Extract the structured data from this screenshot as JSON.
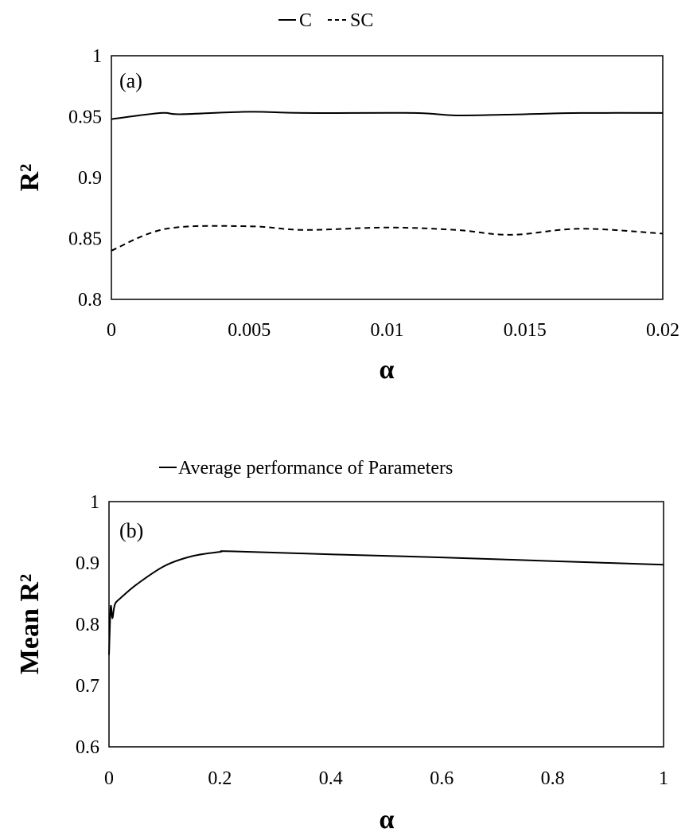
{
  "chart_data": [
    {
      "type": "line",
      "panel_label": "(a)",
      "xlabel": "α",
      "ylabel": "R²",
      "xlim": [
        0,
        0.02
      ],
      "ylim": [
        0.8,
        1
      ],
      "xticks": [
        "0",
        "0.005",
        "0.01",
        "0.015",
        "0.02"
      ],
      "yticks": [
        "0.8",
        "0.85",
        "0.9",
        "0.95",
        "1"
      ],
      "grid": false,
      "legend_position": "top-center",
      "series": [
        {
          "name": "C",
          "style": "solid",
          "color": "#000000",
          "x": [
            0,
            0.0018,
            0.0025,
            0.005,
            0.007,
            0.011,
            0.0125,
            0.015,
            0.017,
            0.02
          ],
          "y": [
            0.948,
            0.953,
            0.952,
            0.954,
            0.953,
            0.953,
            0.951,
            0.952,
            0.953,
            0.953
          ]
        },
        {
          "name": "SC",
          "style": "dashed",
          "color": "#000000",
          "x": [
            0,
            0.002,
            0.005,
            0.007,
            0.01,
            0.0125,
            0.0145,
            0.017,
            0.02
          ],
          "y": [
            0.84,
            0.858,
            0.86,
            0.857,
            0.859,
            0.857,
            0.853,
            0.858,
            0.854
          ]
        }
      ]
    },
    {
      "type": "line",
      "panel_label": "(b)",
      "xlabel": "α",
      "ylabel": "Mean R²",
      "xlim": [
        0,
        1
      ],
      "ylim": [
        0.6,
        1
      ],
      "xticks": [
        "0",
        "0.2",
        "0.4",
        "0.6",
        "0.8",
        "1"
      ],
      "yticks": [
        "0.6",
        "0.7",
        "0.8",
        "0.9",
        "1"
      ],
      "grid": false,
      "legend_position": "top-center",
      "series": [
        {
          "name": "Average performance of Parameters",
          "style": "solid",
          "color": "#000000",
          "x": [
            0,
            0.003,
            0.006,
            0.009,
            0.012,
            0.02,
            0.05,
            0.1,
            0.15,
            0.2,
            0.22,
            0.4,
            0.6,
            0.8,
            1
          ],
          "y": [
            0.75,
            0.828,
            0.81,
            0.826,
            0.835,
            0.842,
            0.865,
            0.895,
            0.911,
            0.918,
            0.919,
            0.914,
            0.909,
            0.903,
            0.897
          ]
        }
      ]
    }
  ]
}
